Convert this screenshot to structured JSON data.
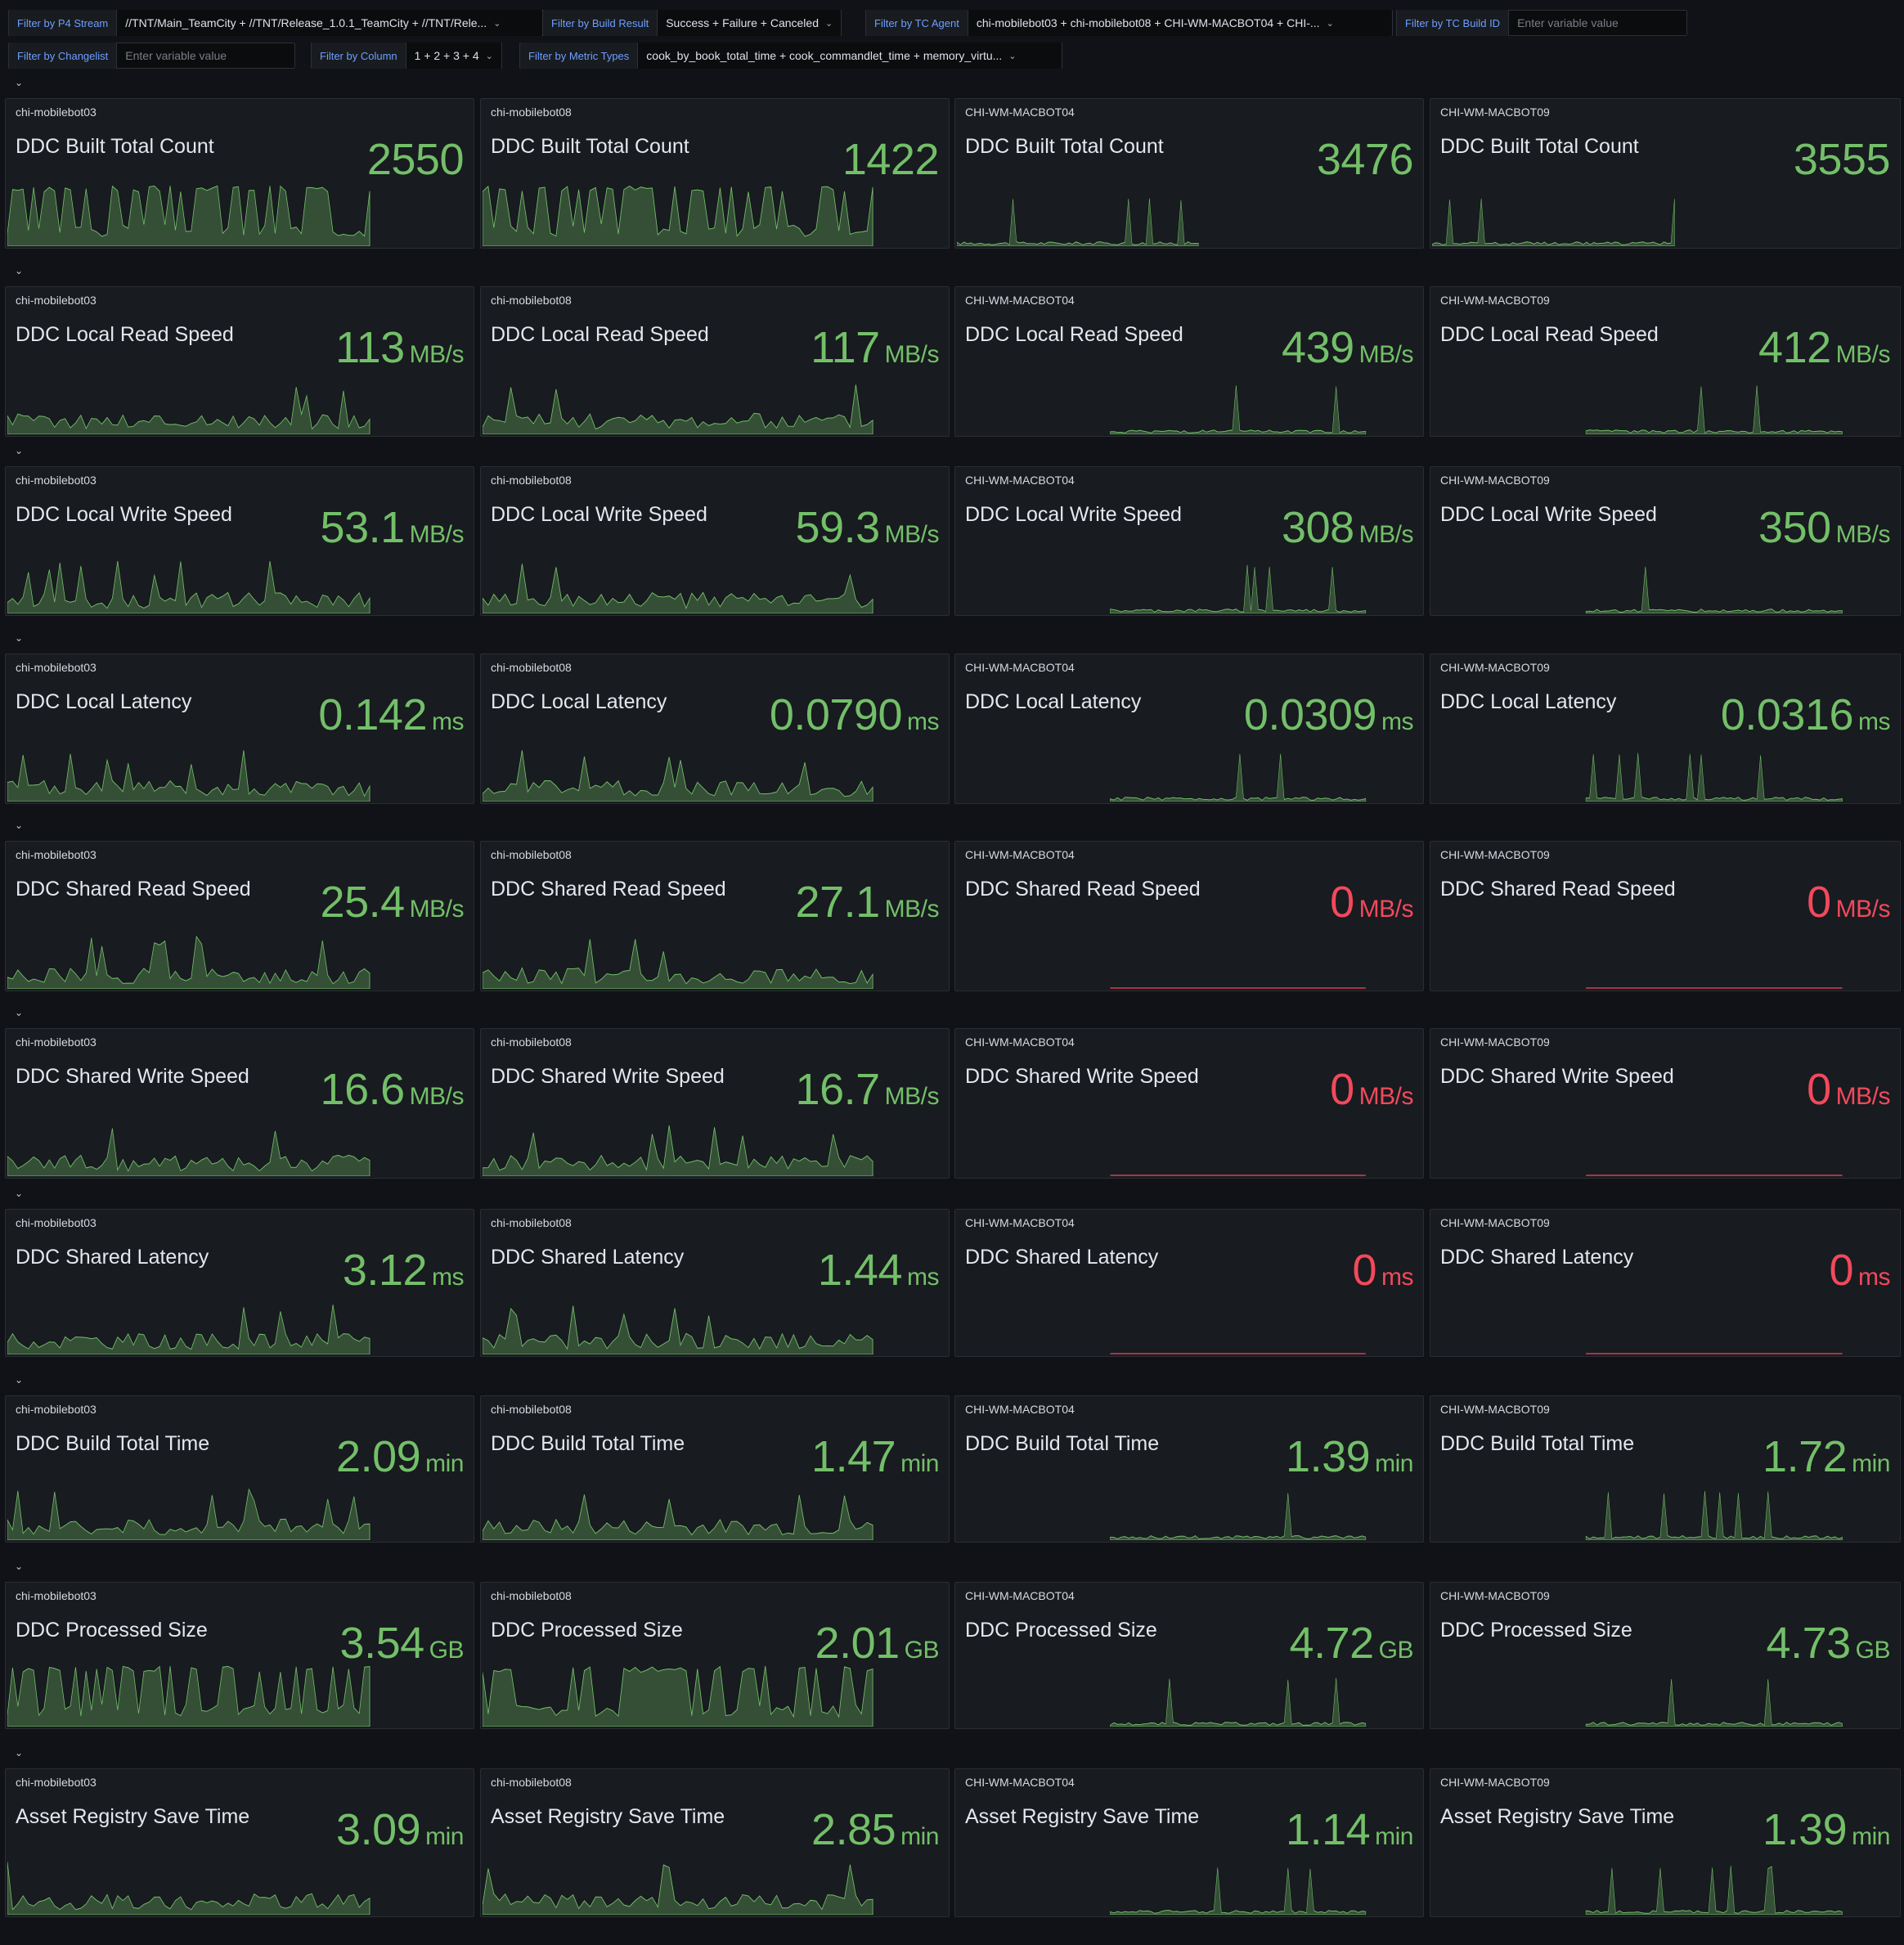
{
  "filters": {
    "p4_stream": {
      "label": "Filter by P4 Stream",
      "value": "//TNT/Main_TeamCity + //TNT/Release_1.0.1_TeamCity + //TNT/Rele..."
    },
    "build_result": {
      "label": "Filter by Build Result",
      "value": "Success + Failure + Canceled"
    },
    "tc_agent": {
      "label": "Filter by TC Agent",
      "value": "chi-mobilebot03 + chi-mobilebot08 + CHI-WM-MACBOT04 + CHI-..."
    },
    "tc_build_id": {
      "label": "Filter by TC Build ID",
      "placeholder": "Enter variable value"
    },
    "changelist": {
      "label": "Filter by Changelist",
      "placeholder": "Enter variable value"
    },
    "column": {
      "label": "Filter by Column",
      "value": "1 + 2 + 3 + 4"
    },
    "metric_types": {
      "label": "Filter by Metric Types",
      "value": "cook_by_book_total_time + cook_commandlet_time + memory_virtu..."
    }
  },
  "colors": {
    "ok": "#73bf69",
    "zero": "#f2495c",
    "background": "#111217",
    "panel": "#181b1f"
  },
  "icons": {
    "row_toggle": "chevron-down-icon",
    "dropdown": "chevron-down-icon"
  },
  "hosts": [
    "chi-mobilebot03",
    "chi-mobilebot08",
    "CHI-WM-MACBOT04",
    "CHI-WM-MACBOT09"
  ],
  "rows": [
    {
      "title": "DDC Built Total Count",
      "unit": "",
      "values": [
        "2550",
        "1422",
        "3476",
        "3555"
      ]
    },
    {
      "title": "DDC Local Read Speed",
      "unit": "MB/s",
      "values": [
        "113",
        "117",
        "439",
        "412"
      ]
    },
    {
      "title": "DDC Local Write Speed",
      "unit": "MB/s",
      "values": [
        "53.1",
        "59.3",
        "308",
        "350"
      ]
    },
    {
      "title": "DDC Local Latency",
      "unit": "ms",
      "values": [
        "0.142",
        "0.0790",
        "0.0309",
        "0.0316"
      ]
    },
    {
      "title": "DDC Shared Read Speed",
      "unit": "MB/s",
      "values": [
        "25.4",
        "27.1",
        "0",
        "0"
      ]
    },
    {
      "title": "DDC Shared Write Speed",
      "unit": "MB/s",
      "values": [
        "16.6",
        "16.7",
        "0",
        "0"
      ]
    },
    {
      "title": "DDC Shared Latency",
      "unit": "ms",
      "values": [
        "3.12",
        "1.44",
        "0",
        "0"
      ]
    },
    {
      "title": "DDC Build Total Time",
      "unit": "min",
      "values": [
        "2.09",
        "1.47",
        "1.39",
        "1.72"
      ]
    },
    {
      "title": "DDC Processed Size",
      "unit": "GB",
      "values": [
        "3.54",
        "2.01",
        "4.72",
        "4.73"
      ]
    },
    {
      "title": "Asset Registry Save Time",
      "unit": "min",
      "values": [
        "3.09",
        "2.85",
        "1.14",
        "1.39"
      ]
    }
  ]
}
